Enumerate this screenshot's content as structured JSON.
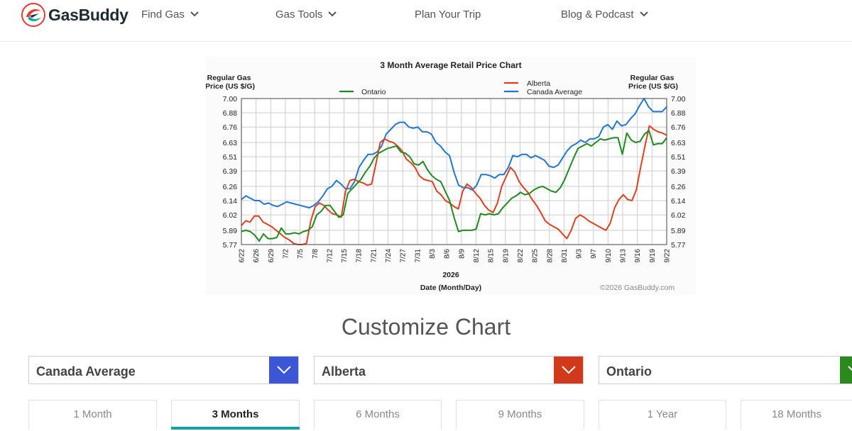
{
  "header": {
    "brand": "GasBuddy",
    "nav": [
      {
        "label": "Find Gas",
        "has_dropdown": true
      },
      {
        "label": "Gas Tools",
        "has_dropdown": true
      },
      {
        "label": "Plan Your Trip",
        "has_dropdown": false
      },
      {
        "label": "Blog & Podcast",
        "has_dropdown": true
      }
    ]
  },
  "chart_data": {
    "type": "line",
    "title": "3 Month Average Retail Price Chart",
    "ylabel": "Regular Gas Price (US $/G)",
    "xlabel": "Date (Month/Day)",
    "year_label": "2026",
    "copyright": "©2026 GasBuddy.com",
    "ylim": [
      5.77,
      7.0
    ],
    "yticks": [
      "7.00",
      "6.88",
      "6.76",
      "6.63",
      "6.51",
      "6.39",
      "6.26",
      "6.14",
      "6.02",
      "5.89",
      "5.77"
    ],
    "xticks": [
      "6/22",
      "6/26",
      "6/29",
      "7/2",
      "7/5",
      "7/8",
      "7/12",
      "7/15",
      "7/18",
      "7/21",
      "7/24",
      "7/27",
      "7/31",
      "8/3",
      "8/6",
      "8/9",
      "8/12",
      "8/15",
      "8/19",
      "8/22",
      "8/25",
      "8/28",
      "8/31",
      "9/3",
      "9/7",
      "9/10",
      "9/13",
      "9/16",
      "9/19",
      "9/22"
    ],
    "grid": true,
    "legend": [
      {
        "name": "Ontario",
        "color": "#1e8b1e"
      },
      {
        "name": "Alberta",
        "color": "#e0401e"
      },
      {
        "name": "Canada Average",
        "color": "#2176d2"
      }
    ],
    "series": [
      {
        "name": "Canada Average",
        "color": "#2176d2",
        "values": [
          6.15,
          6.18,
          6.16,
          6.14,
          6.14,
          6.11,
          6.12,
          6.1,
          6.09,
          6.11,
          6.13,
          6.12,
          6.11,
          6.1,
          6.09,
          6.08,
          6.1,
          6.13,
          6.18,
          6.24,
          6.26,
          6.31,
          6.28,
          6.24,
          6.24,
          6.3,
          6.42,
          6.48,
          6.53,
          6.53,
          6.55,
          6.6,
          6.7,
          6.74,
          6.78,
          6.8,
          6.8,
          6.76,
          6.75,
          6.76,
          6.72,
          6.72,
          6.7,
          6.63,
          6.6,
          6.55,
          6.52,
          6.38,
          6.27,
          6.25,
          6.25,
          6.23,
          6.27,
          6.36,
          6.36,
          6.35,
          6.33,
          6.36,
          6.36,
          6.42,
          6.52,
          6.51,
          6.53,
          6.53,
          6.5,
          6.52,
          6.5,
          6.48,
          6.43,
          6.42,
          6.44,
          6.5,
          6.56,
          6.6,
          6.62,
          6.65,
          6.63,
          6.66,
          6.66,
          6.68,
          6.76,
          6.78,
          6.74,
          6.81,
          6.77,
          6.78,
          6.83,
          6.87,
          6.94,
          7.0,
          6.93,
          6.89,
          6.89,
          6.89,
          6.93
        ]
      },
      {
        "name": "Alberta",
        "color": "#e0401e",
        "values": [
          5.93,
          5.97,
          5.96,
          6.01,
          6.01,
          5.96,
          5.94,
          5.92,
          5.89,
          5.86,
          5.83,
          5.81,
          5.78,
          5.77,
          5.77,
          5.78,
          5.97,
          6.09,
          6.12,
          6.1,
          6.06,
          6.03,
          6.02,
          6.0,
          6.22,
          6.31,
          6.32,
          6.3,
          6.29,
          6.27,
          6.28,
          6.45,
          6.63,
          6.66,
          6.64,
          6.63,
          6.6,
          6.56,
          6.49,
          6.46,
          6.42,
          6.35,
          6.32,
          6.31,
          6.3,
          6.22,
          6.19,
          6.14,
          6.12,
          6.09,
          6.07,
          6.22,
          6.28,
          6.25,
          6.2,
          6.16,
          6.1,
          6.06,
          6.04,
          6.12,
          6.26,
          6.34,
          6.42,
          6.38,
          6.3,
          6.25,
          6.21,
          6.15,
          6.1,
          6.04,
          5.97,
          5.94,
          5.92,
          5.9,
          5.86,
          5.82,
          5.89,
          5.99,
          6.02,
          6.0,
          5.97,
          5.95,
          5.93,
          5.91,
          5.89,
          5.95,
          6.08,
          6.15,
          6.19,
          6.15,
          6.14,
          6.23,
          6.42,
          6.6,
          6.77,
          6.74,
          6.72,
          6.71,
          6.69
        ]
      },
      {
        "name": "Ontario",
        "color": "#1e8b1e",
        "values": [
          5.88,
          5.89,
          5.88,
          5.85,
          5.8,
          5.86,
          5.82,
          5.82,
          5.83,
          5.91,
          5.86,
          5.86,
          5.87,
          5.86,
          5.88,
          5.89,
          5.92,
          6.02,
          6.05,
          6.1,
          6.1,
          6.05,
          6.0,
          6.02,
          6.2,
          6.24,
          6.28,
          6.32,
          6.38,
          6.43,
          6.5,
          6.54,
          6.56,
          6.58,
          6.59,
          6.6,
          6.55,
          6.54,
          6.51,
          6.45,
          6.44,
          6.47,
          6.4,
          6.35,
          6.32,
          6.3,
          6.22,
          6.14,
          6.0,
          5.88,
          5.89,
          5.89,
          5.89,
          5.9,
          6.03,
          6.02,
          6.03,
          6.02,
          6.03,
          6.08,
          6.12,
          6.16,
          6.18,
          6.21,
          6.19,
          6.2,
          6.23,
          6.25,
          6.26,
          6.24,
          6.22,
          6.21,
          6.25,
          6.32,
          6.41,
          6.5,
          6.58,
          6.6,
          6.62,
          6.6,
          6.63,
          6.66,
          6.65,
          6.66,
          6.67,
          6.67,
          6.53,
          6.71,
          6.65,
          6.63,
          6.64,
          6.7,
          6.73,
          6.61,
          6.62,
          6.62,
          6.67
        ]
      }
    ]
  },
  "customize": {
    "title": "Customize Chart",
    "selects": [
      {
        "label": "Canada Average",
        "color": "#3c57d5"
      },
      {
        "label": "Alberta",
        "color": "#d2391a"
      },
      {
        "label": "Ontario",
        "color": "#2a8a1c"
      }
    ],
    "tabs": [
      {
        "label": "1 Month",
        "active": false
      },
      {
        "label": "3 Months",
        "active": true
      },
      {
        "label": "6 Months",
        "active": false
      },
      {
        "label": "9 Months",
        "active": false
      },
      {
        "label": "1 Year",
        "active": false
      },
      {
        "label": "18 Months",
        "active": false
      }
    ]
  }
}
